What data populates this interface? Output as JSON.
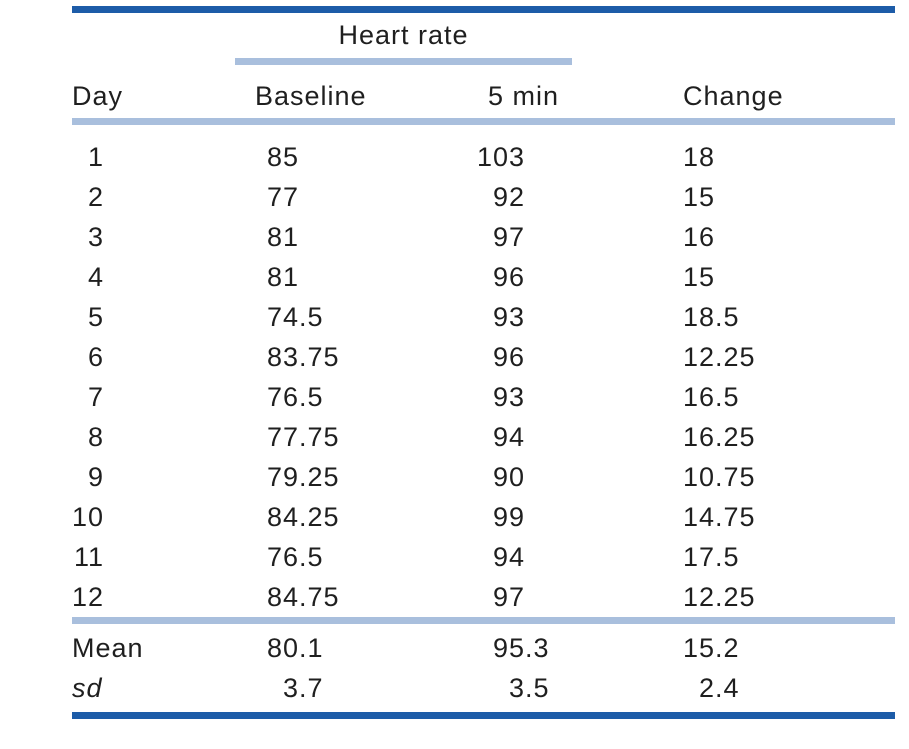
{
  "colors": {
    "rule_dark": "#1d5ca8",
    "rule_light": "#a9bfdd",
    "text": "#1f1f1f"
  },
  "table": {
    "spanner_label": "Heart rate",
    "headers": {
      "day": "Day",
      "baseline": "Baseline",
      "five_min": "5 min",
      "change": "Change"
    },
    "rows": [
      {
        "day": "1",
        "baseline": "85",
        "five_min": "103",
        "change": "18"
      },
      {
        "day": "2",
        "baseline": "77",
        "five_min": "92",
        "change": "15"
      },
      {
        "day": "3",
        "baseline": "81",
        "five_min": "97",
        "change": "16"
      },
      {
        "day": "4",
        "baseline": "81",
        "five_min": "96",
        "change": "15"
      },
      {
        "day": "5",
        "baseline": "74.5",
        "five_min": "93",
        "change": "18.5"
      },
      {
        "day": "6",
        "baseline": "83.75",
        "five_min": "96",
        "change": "12.25"
      },
      {
        "day": "7",
        "baseline": "76.5",
        "five_min": "93",
        "change": "16.5"
      },
      {
        "day": "8",
        "baseline": "77.75",
        "five_min": "94",
        "change": "16.25"
      },
      {
        "day": "9",
        "baseline": "79.25",
        "five_min": "90",
        "change": "10.75"
      },
      {
        "day": "10",
        "baseline": "84.25",
        "five_min": "99",
        "change": "14.75"
      },
      {
        "day": "11",
        "baseline": "76.5",
        "five_min": "94",
        "change": "17.5"
      },
      {
        "day": "12",
        "baseline": "84.75",
        "five_min": "97",
        "change": "12.25"
      }
    ],
    "summary": [
      {
        "label": "Mean",
        "baseline": "80.1",
        "five_min": "95.3",
        "change": "15.2"
      },
      {
        "label": "sd",
        "baseline": "3.7",
        "five_min": "3.5",
        "change": "2.4"
      }
    ]
  }
}
